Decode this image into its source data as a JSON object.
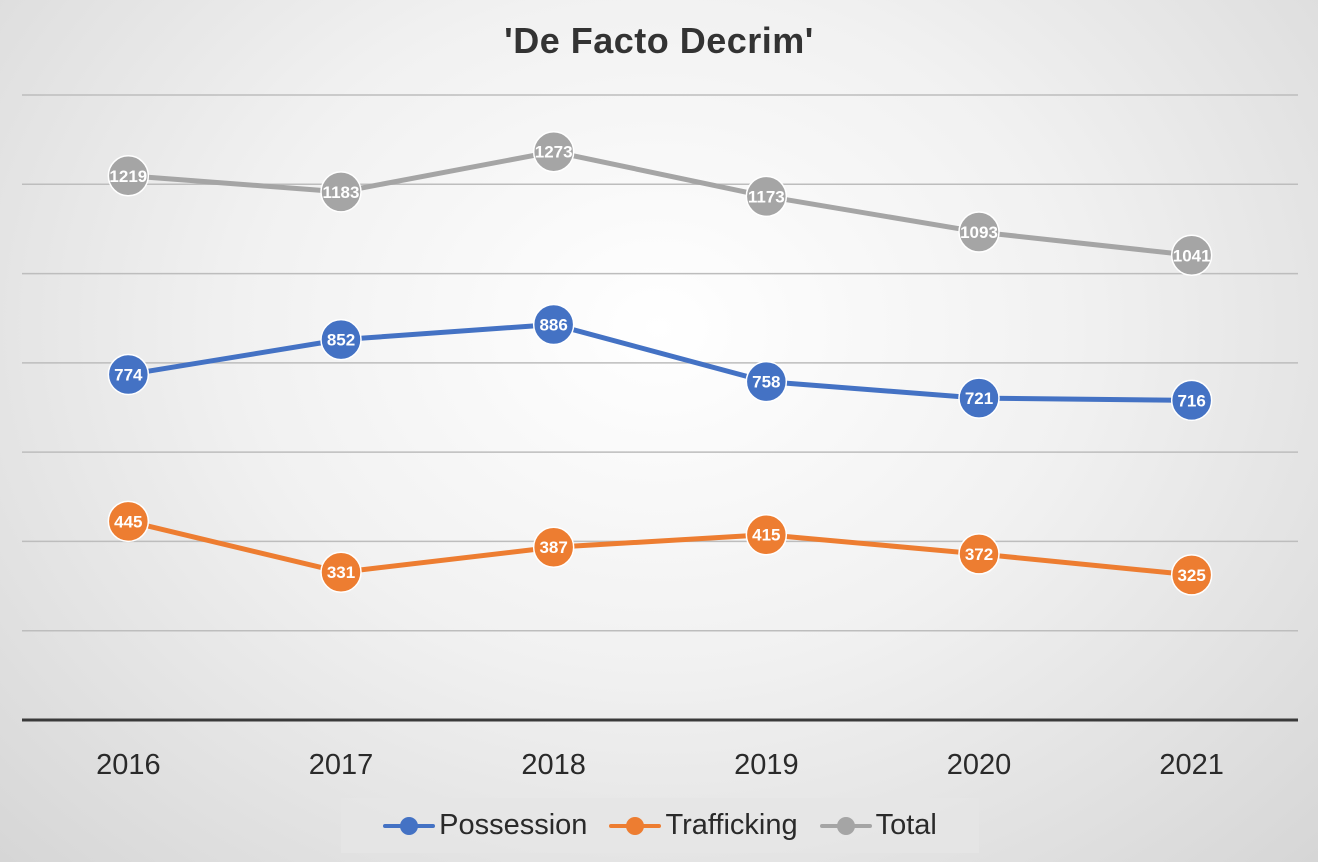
{
  "chart_data": {
    "type": "line",
    "title": "'De Facto Decrim'",
    "xlabel": "",
    "ylabel": "",
    "categories": [
      "2016",
      "2017",
      "2018",
      "2019",
      "2020",
      "2021"
    ],
    "series": [
      {
        "name": "Possession",
        "values": [
          774,
          852,
          886,
          758,
          721,
          716
        ],
        "color": "#4472C4"
      },
      {
        "name": "Trafficking",
        "values": [
          445,
          331,
          387,
          415,
          372,
          325
        ],
        "color": "#ED7D31"
      },
      {
        "name": "Total",
        "values": [
          1219,
          1183,
          1273,
          1173,
          1093,
          1041
        ],
        "color": "#A5A5A5"
      }
    ],
    "ylim": [
      0,
      1400
    ],
    "y_gridline_step": 200,
    "grid": true,
    "y_tick_labels": false,
    "data_labels": true,
    "legend_position": "bottom"
  }
}
